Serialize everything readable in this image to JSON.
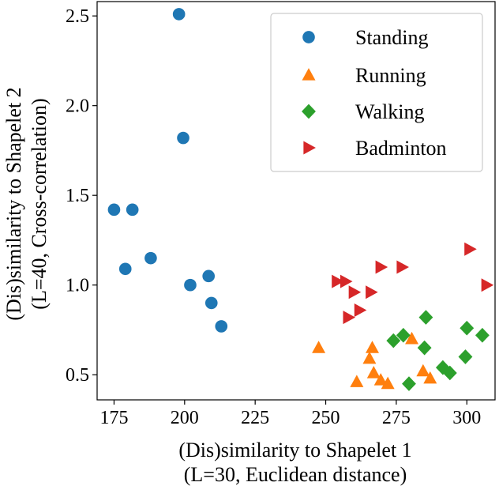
{
  "chart_data": {
    "type": "scatter",
    "title": "",
    "xlabel_lines": [
      "(Dis)similarity to Shapelet 1",
      "(L=30, Euclidean distance)"
    ],
    "ylabel_lines": [
      "(Dis)similarity to Shapelet 2",
      "(L=40, Cross-correlation)"
    ],
    "xlim": [
      169,
      310
    ],
    "ylim": [
      0.36,
      2.58
    ],
    "xticks": [
      175,
      200,
      225,
      250,
      275,
      300
    ],
    "yticks": [
      0.5,
      1.0,
      1.5,
      2.0,
      2.5
    ],
    "xtick_labels": [
      "175",
      "200",
      "225",
      "250",
      "275",
      "300"
    ],
    "ytick_labels": [
      "0.5",
      "1.0",
      "1.5",
      "2.0",
      "2.5"
    ],
    "grid": false,
    "legend_position": "top-right",
    "series": [
      {
        "name": "Standing",
        "marker": "circle",
        "color": "#1f77b4",
        "points": [
          [
            198,
            2.51
          ],
          [
            199.5,
            1.82
          ],
          [
            175,
            1.42
          ],
          [
            181.5,
            1.42
          ],
          [
            188,
            1.15
          ],
          [
            179,
            1.09
          ],
          [
            208.5,
            1.05
          ],
          [
            202,
            1.0
          ],
          [
            209.5,
            0.9
          ],
          [
            213,
            0.77
          ]
        ]
      },
      {
        "name": "Running",
        "marker": "triangle-up",
        "color": "#ff7f0e",
        "points": [
          [
            247.5,
            0.65
          ],
          [
            266.5,
            0.65
          ],
          [
            265.5,
            0.59
          ],
          [
            267,
            0.51
          ],
          [
            269.5,
            0.47
          ],
          [
            261,
            0.46
          ],
          [
            272,
            0.45
          ],
          [
            280.5,
            0.7
          ],
          [
            284.5,
            0.52
          ],
          [
            287,
            0.48
          ]
        ]
      },
      {
        "name": "Walking",
        "marker": "diamond",
        "color": "#2ca02c",
        "points": [
          [
            285.5,
            0.82
          ],
          [
            277.5,
            0.72
          ],
          [
            274,
            0.69
          ],
          [
            285,
            0.65
          ],
          [
            300,
            0.76
          ],
          [
            305.5,
            0.72
          ],
          [
            299.5,
            0.6
          ],
          [
            291.5,
            0.54
          ],
          [
            294,
            0.51
          ],
          [
            279.5,
            0.45
          ]
        ]
      },
      {
        "name": "Badminton",
        "marker": "triangle-right",
        "color": "#d62728",
        "points": [
          [
            254,
            1.02
          ],
          [
            257,
            1.02
          ],
          [
            260,
            0.96
          ],
          [
            266,
            0.96
          ],
          [
            269.5,
            1.1
          ],
          [
            277,
            1.1
          ],
          [
            301,
            1.2
          ],
          [
            307,
            1.0
          ],
          [
            262,
            0.86
          ],
          [
            258,
            0.82
          ]
        ]
      }
    ]
  }
}
